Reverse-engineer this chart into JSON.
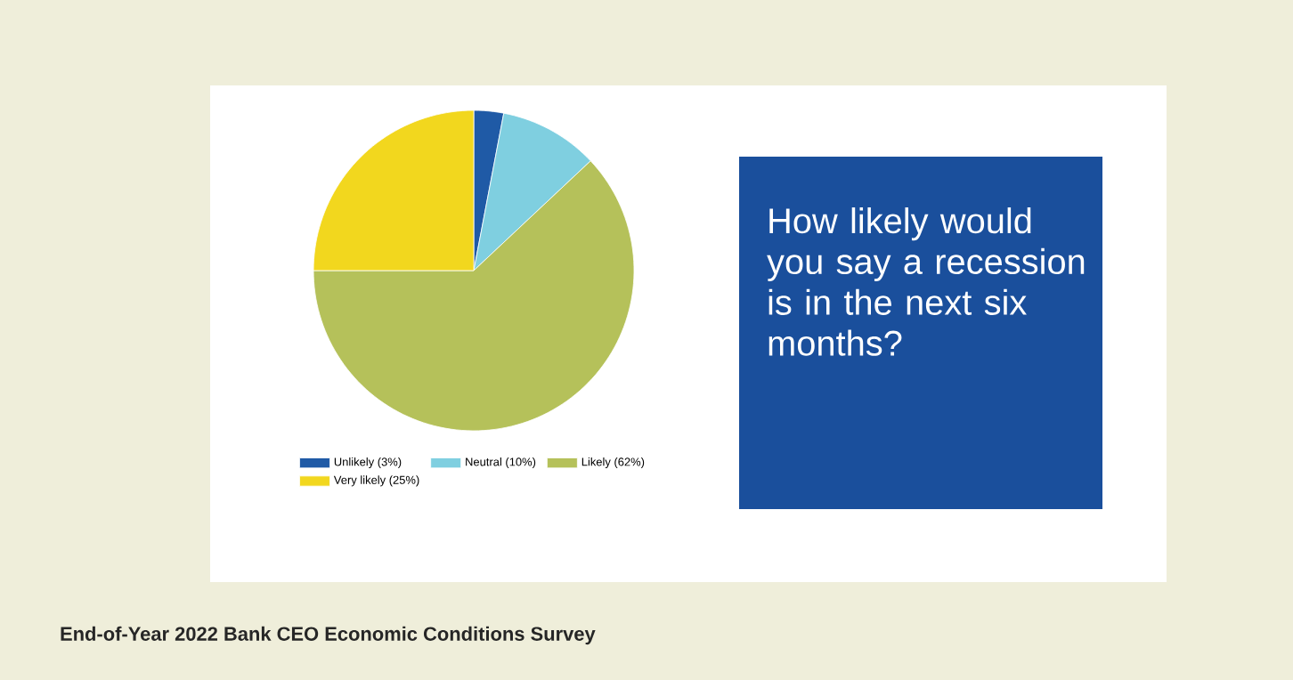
{
  "chart_data": {
    "type": "pie",
    "title": "How likely would you say a recession is in the next six months?",
    "subtitle": "End-of-Year 2022 Bank CEO Economic Conditions Survey",
    "categories": [
      "Unlikely (3%)",
      "Neutral (10%)",
      "Likely (62%)",
      "Very likely (25%)"
    ],
    "values": [
      3,
      10,
      62,
      25
    ],
    "colors": [
      "#1f5aa6",
      "#7fcfe0",
      "#b5c15a",
      "#f2d71e"
    ],
    "legend": "bottom"
  }
}
